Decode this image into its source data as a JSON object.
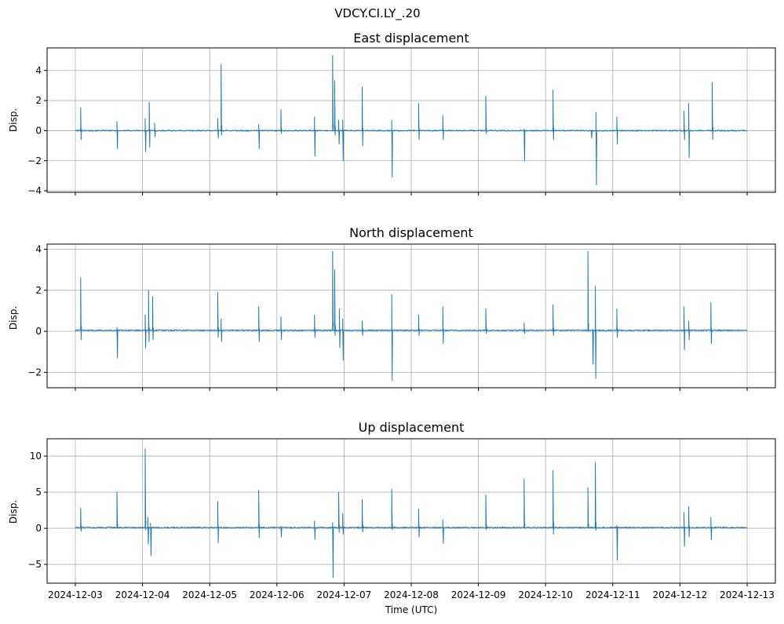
{
  "chart_data": {
    "type": "line",
    "suptitle": "VDCY.CI.LY_.20",
    "xlabel": "Time (UTC)",
    "x_range_days": [
      0,
      10
    ],
    "x_ticks": [
      "2024-12-03",
      "2024-12-04",
      "2024-12-05",
      "2024-12-06",
      "2024-12-07",
      "2024-12-08",
      "2024-12-09",
      "2024-12-10",
      "2024-12-11",
      "2024-12-12",
      "2024-12-13"
    ],
    "line_color": "#1f77b4",
    "grid": true,
    "panels": [
      {
        "title": "East displacement",
        "ylabel": "Disp.",
        "ylim": [
          -4.1,
          5.5
        ],
        "yticks": [
          -4,
          -2,
          0,
          2,
          4
        ],
        "yticklabels": [
          "−4",
          "−2",
          "0",
          "2",
          "4"
        ],
        "baseline": 0,
        "spikes": [
          [
            0.08,
            1.5,
            -0.6
          ],
          [
            0.62,
            0.6,
            -1.2
          ],
          [
            1.04,
            0.8,
            -1.4
          ],
          [
            1.1,
            1.9,
            -1.1
          ],
          [
            1.18,
            0.5,
            -0.4
          ],
          [
            2.12,
            0.8,
            -0.5
          ],
          [
            2.17,
            4.4,
            -0.3
          ],
          [
            2.73,
            0.4,
            -1.2
          ],
          [
            3.06,
            1.4,
            -0.2
          ],
          [
            3.56,
            0.9,
            -1.7
          ],
          [
            3.83,
            5.0,
            0.1
          ],
          [
            3.86,
            3.3,
            -0.3
          ],
          [
            3.92,
            0.7,
            -0.9
          ],
          [
            3.98,
            0.7,
            -2.0
          ],
          [
            4.27,
            2.9,
            -1.0
          ],
          [
            4.71,
            0.7,
            -3.1
          ],
          [
            5.11,
            1.8,
            -0.6
          ],
          [
            5.47,
            1.0,
            -0.6
          ],
          [
            6.11,
            2.3,
            -0.2
          ],
          [
            6.68,
            0.1,
            -2.0
          ],
          [
            7.11,
            2.7,
            -0.6
          ],
          [
            7.68,
            0.0,
            -0.5
          ],
          [
            7.75,
            1.2,
            -3.6
          ],
          [
            8.06,
            0.9,
            -0.9
          ],
          [
            9.06,
            1.3,
            -0.6
          ],
          [
            9.13,
            1.8,
            -1.8
          ],
          [
            9.48,
            3.2,
            -0.6
          ]
        ]
      },
      {
        "title": "North displacement",
        "ylabel": "Disp.",
        "ylim": [
          -2.75,
          4.25
        ],
        "yticks": [
          -2,
          0,
          2,
          4
        ],
        "yticklabels": [
          "−2",
          "0",
          "2",
          "4"
        ],
        "baseline": 0.05,
        "spikes": [
          [
            0.08,
            2.6,
            -0.4
          ],
          [
            0.62,
            0.2,
            -1.3
          ],
          [
            1.04,
            0.8,
            -0.8
          ],
          [
            1.09,
            2.0,
            -0.5
          ],
          [
            1.15,
            1.7,
            -0.4
          ],
          [
            2.12,
            1.9,
            -0.3
          ],
          [
            2.17,
            0.6,
            -0.5
          ],
          [
            2.73,
            1.2,
            -0.5
          ],
          [
            3.06,
            0.7,
            -0.4
          ],
          [
            3.56,
            0.8,
            -0.3
          ],
          [
            3.83,
            3.9,
            0.3
          ],
          [
            3.86,
            3.0,
            -0.2
          ],
          [
            3.93,
            1.1,
            -0.8
          ],
          [
            3.98,
            0.6,
            -1.4
          ],
          [
            4.27,
            0.5,
            -0.2
          ],
          [
            4.71,
            1.8,
            -2.4
          ],
          [
            5.11,
            0.8,
            -0.2
          ],
          [
            5.47,
            1.2,
            -0.6
          ],
          [
            6.11,
            1.1,
            -0.1
          ],
          [
            6.68,
            0.4,
            -0.1
          ],
          [
            7.11,
            1.3,
            -0.2
          ],
          [
            7.63,
            3.9,
            0.0
          ],
          [
            7.7,
            0.1,
            -1.6
          ],
          [
            7.74,
            2.2,
            -2.3
          ],
          [
            8.06,
            1.1,
            -0.3
          ],
          [
            9.06,
            1.2,
            -0.9
          ],
          [
            9.13,
            0.5,
            -0.4
          ],
          [
            9.46,
            1.4,
            -0.6
          ]
        ]
      },
      {
        "title": "Up displacement",
        "ylabel": "Disp.",
        "ylim": [
          -7.6,
          12.4
        ],
        "yticks": [
          -5,
          0,
          5,
          10
        ],
        "yticklabels": [
          "−5",
          "0",
          "5",
          "10"
        ],
        "baseline": 0.1,
        "spikes": [
          [
            0.08,
            2.8,
            -0.4
          ],
          [
            0.62,
            5.0,
            0.0
          ],
          [
            1.04,
            11.0,
            -0.2
          ],
          [
            1.08,
            1.5,
            -2.2
          ],
          [
            1.12,
            0.7,
            -3.8
          ],
          [
            2.12,
            3.7,
            -2.0
          ],
          [
            2.73,
            5.3,
            -1.3
          ],
          [
            3.06,
            0.3,
            -1.2
          ],
          [
            3.56,
            1.0,
            -1.5
          ],
          [
            3.83,
            0.8,
            -6.8
          ],
          [
            3.92,
            5.0,
            -0.6
          ],
          [
            3.98,
            2.0,
            -0.8
          ],
          [
            4.27,
            4.0,
            -0.5
          ],
          [
            4.71,
            5.4,
            -0.2
          ],
          [
            5.11,
            2.7,
            -1.2
          ],
          [
            5.47,
            1.2,
            -2.1
          ],
          [
            6.11,
            4.6,
            -0.2
          ],
          [
            6.68,
            6.8,
            0.0
          ],
          [
            7.11,
            8.0,
            -0.8
          ],
          [
            7.63,
            5.6,
            0.0
          ],
          [
            7.74,
            9.1,
            -0.3
          ],
          [
            8.06,
            0.4,
            -4.4
          ],
          [
            9.06,
            2.2,
            -2.5
          ],
          [
            9.13,
            3.0,
            -1.2
          ],
          [
            9.46,
            1.5,
            -1.6
          ]
        ]
      }
    ]
  }
}
